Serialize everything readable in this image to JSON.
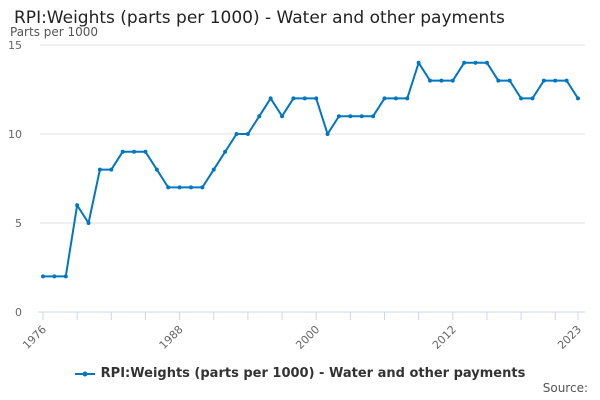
{
  "chart_data": {
    "type": "line",
    "title": "RPI:Weights (parts per 1000) - Water and other payments",
    "ylabel": "Parts per 1000",
    "xlabel": "",
    "source_label": "Source:",
    "ylim": [
      0,
      15
    ],
    "yticks": [
      0,
      5,
      10,
      15
    ],
    "xticks": [
      "1976",
      "1988",
      "2000",
      "2012",
      "2023"
    ],
    "grid": true,
    "legend_position": "bottom",
    "color": "#0077c0",
    "series": [
      {
        "name": "RPI:Weights (parts per 1000) - Water and other payments",
        "x": [
          1976,
          1977,
          1978,
          1979,
          1980,
          1981,
          1982,
          1983,
          1984,
          1985,
          1986,
          1987,
          1988,
          1989,
          1990,
          1991,
          1992,
          1993,
          1994,
          1995,
          1996,
          1997,
          1998,
          1999,
          2000,
          2001,
          2002,
          2003,
          2004,
          2005,
          2006,
          2007,
          2008,
          2009,
          2010,
          2011,
          2012,
          2013,
          2014,
          2015,
          2016,
          2017,
          2018,
          2019,
          2020,
          2021,
          2022,
          2023
        ],
        "values": [
          2,
          2,
          2,
          6,
          5,
          8,
          8,
          9,
          9,
          9,
          8,
          7,
          7,
          7,
          7,
          8,
          9,
          10,
          10,
          11,
          12,
          11,
          12,
          12,
          12,
          10,
          11,
          11,
          11,
          11,
          12,
          12,
          12,
          14,
          13,
          13,
          13,
          14,
          14,
          14,
          13,
          13,
          12,
          12,
          13,
          13,
          13,
          12
        ]
      }
    ]
  }
}
